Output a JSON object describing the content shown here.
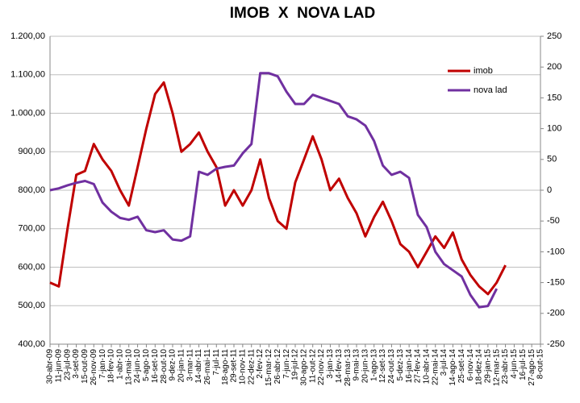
{
  "chart_data": {
    "type": "line",
    "title": "IMOB  X  NOVA LAD",
    "categories": [
      "30-abr-09",
      "11-jun-09",
      "23-jul-09",
      "3-set-09",
      "15-out-09",
      "26-nov-09",
      "7-jan-10",
      "18-fev-10",
      "1-abr-10",
      "13-mai-10",
      "24-jun-10",
      "5-ago-10",
      "16-set-10",
      "28-out-10",
      "9-dez-10",
      "20-jan-11",
      "3-mar-11",
      "14-abr-11",
      "26-mai-11",
      "7-jul-11",
      "18-ago-11",
      "29-set-11",
      "10-nov-11",
      "22-dez-11",
      "2-fev-12",
      "15-mar-12",
      "26-abr-12",
      "7-jun-12",
      "19-jul-12",
      "30-ago-12",
      "11-out-12",
      "22-nov-12",
      "3-jan-13",
      "14-fev-13",
      "28-mar-13",
      "9-mai-13",
      "20-jun-13",
      "1-ago-13",
      "12-set-13",
      "24-out-13",
      "5-dez-13",
      "16-jan-14",
      "27-fev-14",
      "10-abr-14",
      "22-mai-14",
      "3-jul-14",
      "14-ago-14",
      "25-set-14",
      "6-nov-14",
      "18-dez-14",
      "29-jan-15",
      "12-mar-15",
      "23-abr-15",
      "4-jun-15",
      "16-jul-15",
      "27-ago-15",
      "8-out-15"
    ],
    "series": [
      {
        "name": "imob",
        "color": "#c00000",
        "values": [
          560,
          550,
          700,
          840,
          850,
          920,
          880,
          850,
          800,
          760,
          860,
          960,
          1050,
          1080,
          1000,
          900,
          920,
          950,
          900,
          860,
          760,
          800,
          760,
          800,
          880,
          780,
          720,
          700,
          820,
          880,
          940,
          880,
          800,
          830,
          780,
          740,
          680,
          730,
          770,
          720,
          660,
          640,
          600,
          640,
          680,
          650,
          690,
          620,
          580,
          550,
          530,
          560,
          605,
          null,
          null,
          null,
          null
        ]
      },
      {
        "name": "nova lad",
        "color": "#7030a0",
        "axis": "y2",
        "values": [
          0,
          3,
          8,
          12,
          15,
          10,
          -20,
          -35,
          -45,
          -48,
          -43,
          -65,
          -68,
          -65,
          -80,
          -82,
          -75,
          30,
          25,
          35,
          38,
          40,
          60,
          75,
          190,
          190,
          185,
          160,
          140,
          140,
          155,
          150,
          145,
          140,
          120,
          115,
          105,
          80,
          40,
          25,
          30,
          20,
          -40,
          -60,
          -100,
          -120,
          -130,
          -140,
          -170,
          -190,
          -188,
          -160,
          null,
          null,
          null,
          null,
          null
        ]
      }
    ],
    "ylim": [
      400,
      1200
    ],
    "yticks": [
      {
        "value": 400,
        "label": "400,00"
      },
      {
        "value": 500,
        "label": "500,00"
      },
      {
        "value": 600,
        "label": "600,00"
      },
      {
        "value": 700,
        "label": "700,00"
      },
      {
        "value": 800,
        "label": "800,00"
      },
      {
        "value": 900,
        "label": "900,00"
      },
      {
        "value": 1000,
        "label": "1.000,00"
      },
      {
        "value": 1100,
        "label": "1.100,00"
      },
      {
        "value": 1200,
        "label": "1.200,00"
      }
    ],
    "y2lim": [
      -250,
      250
    ],
    "y2ticks": [
      -250,
      -200,
      -150,
      -100,
      -50,
      0,
      50,
      100,
      150,
      200,
      250
    ],
    "grid": true,
    "legend": "upper right"
  }
}
